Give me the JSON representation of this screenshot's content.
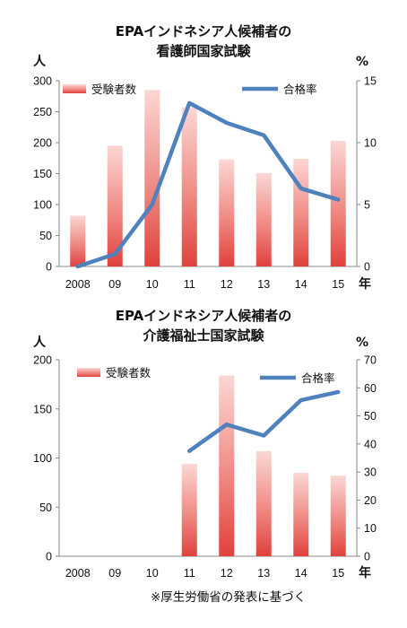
{
  "chart_data": [
    {
      "type": "bar",
      "title": "EPAインドネシア人候補者の",
      "subtitle": "看護師国家試験",
      "ylabel_left": "人",
      "ylabel_right": "%",
      "x_unit": "年",
      "categories": [
        "2008",
        "09",
        "10",
        "11",
        "12",
        "13",
        "14",
        "15"
      ],
      "ylim_left": [
        0,
        300
      ],
      "yticks_left": [
        0,
        50,
        100,
        150,
        200,
        250,
        300
      ],
      "ylim_right": [
        0,
        15
      ],
      "yticks_right": [
        0,
        5,
        10,
        15
      ],
      "legend_position": "top",
      "series": [
        {
          "name": "受験者数",
          "kind": "bar",
          "axis": "left",
          "color": "#e8514f",
          "values": [
            82,
            195,
            285,
            257,
            173,
            151,
            174,
            203
          ]
        },
        {
          "name": "合格率",
          "kind": "line",
          "axis": "right",
          "color": "#4f81bd",
          "values": [
            0,
            1.0,
            5.0,
            13.2,
            11.6,
            10.6,
            6.3,
            5.4
          ]
        }
      ]
    },
    {
      "type": "bar",
      "title": "EPAインドネシア人候補者の",
      "subtitle": "介護福祉士国家試験",
      "ylabel_left": "人",
      "ylabel_right": "%",
      "x_unit": "年",
      "categories": [
        "2008",
        "09",
        "10",
        "11",
        "12",
        "13",
        "14",
        "15"
      ],
      "ylim_left": [
        0,
        200
      ],
      "yticks_left": [
        0,
        50,
        100,
        150,
        200
      ],
      "ylim_right": [
        0,
        70
      ],
      "yticks_right": [
        0,
        10,
        20,
        30,
        40,
        50,
        60,
        70
      ],
      "legend_position": "top",
      "series": [
        {
          "name": "受験者数",
          "kind": "bar",
          "axis": "left",
          "color": "#e8514f",
          "values": [
            null,
            null,
            null,
            94,
            184,
            107,
            85,
            82
          ]
        },
        {
          "name": "合格率",
          "kind": "line",
          "axis": "right",
          "color": "#4f81bd",
          "values": [
            null,
            null,
            null,
            37.5,
            46.9,
            43.0,
            55.6,
            58.5
          ]
        }
      ]
    }
  ],
  "footnote": "※厚生労働省の発表に基づく"
}
